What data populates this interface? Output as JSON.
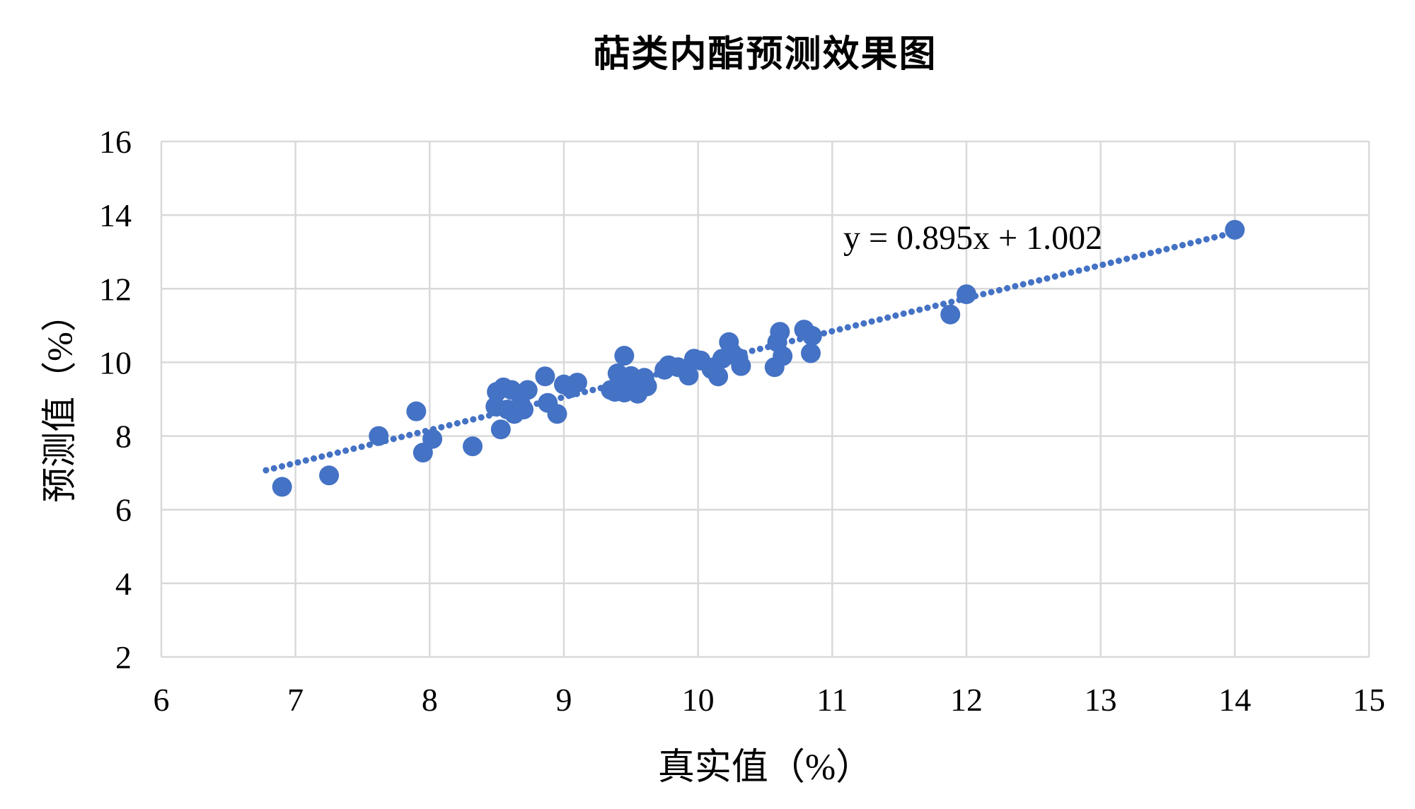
{
  "chart_data": {
    "type": "scatter",
    "title": "萜类内酯预测效果图",
    "xlabel": "真实值（%）",
    "ylabel": "预测值（%）",
    "xlim": [
      6,
      15
    ],
    "ylim": [
      2,
      16
    ],
    "x_ticks": [
      6,
      7,
      8,
      9,
      10,
      11,
      12,
      13,
      14,
      15
    ],
    "y_ticks": [
      2,
      4,
      6,
      8,
      10,
      12,
      14,
      16
    ],
    "grid": true,
    "legend": "none",
    "equation_label": "y = 0.895x + 1.002",
    "trendline": {
      "slope": 0.895,
      "intercept": 1.002,
      "x_start": 6.78,
      "x_end": 14.05,
      "style": "dotted"
    },
    "series": [
      {
        "name": "预测值",
        "points": [
          [
            6.9,
            6.62
          ],
          [
            7.25,
            6.93
          ],
          [
            7.62,
            8.0
          ],
          [
            7.9,
            8.67
          ],
          [
            7.95,
            7.55
          ],
          [
            8.02,
            7.92
          ],
          [
            8.32,
            7.72
          ],
          [
            8.5,
            9.2
          ],
          [
            8.55,
            9.32
          ],
          [
            8.61,
            9.25
          ],
          [
            8.49,
            8.8
          ],
          [
            8.58,
            8.72
          ],
          [
            8.68,
            8.85
          ],
          [
            8.73,
            9.25
          ],
          [
            8.7,
            8.72
          ],
          [
            8.53,
            8.18
          ],
          [
            8.63,
            8.6
          ],
          [
            8.86,
            9.62
          ],
          [
            8.88,
            8.9
          ],
          [
            8.95,
            8.6
          ],
          [
            9.0,
            9.4
          ],
          [
            9.05,
            9.3
          ],
          [
            9.1,
            9.45
          ],
          [
            9.35,
            9.25
          ],
          [
            9.38,
            9.2
          ],
          [
            9.4,
            9.7
          ],
          [
            9.45,
            10.18
          ],
          [
            9.45,
            9.18
          ],
          [
            9.5,
            9.63
          ],
          [
            9.48,
            9.3
          ],
          [
            9.55,
            9.15
          ],
          [
            9.57,
            9.45
          ],
          [
            9.6,
            9.58
          ],
          [
            9.62,
            9.35
          ],
          [
            9.75,
            9.8
          ],
          [
            9.78,
            9.92
          ],
          [
            9.85,
            9.87
          ],
          [
            9.93,
            9.64
          ],
          [
            9.97,
            10.1
          ],
          [
            10.02,
            10.05
          ],
          [
            10.1,
            9.82
          ],
          [
            10.18,
            10.1
          ],
          [
            10.23,
            10.55
          ],
          [
            10.25,
            10.27
          ],
          [
            10.3,
            10.12
          ],
          [
            10.32,
            9.9
          ],
          [
            10.15,
            9.62
          ],
          [
            10.57,
            9.87
          ],
          [
            10.59,
            10.55
          ],
          [
            10.61,
            10.83
          ],
          [
            10.63,
            10.17
          ],
          [
            10.79,
            10.89
          ],
          [
            10.85,
            10.72
          ],
          [
            10.84,
            10.25
          ],
          [
            11.88,
            11.3
          ],
          [
            12.0,
            11.85
          ],
          [
            14.0,
            13.6
          ]
        ]
      }
    ],
    "colors": {
      "marker": "#4472C4",
      "trendline": "#4472C4",
      "gridline": "#D9D9D9",
      "text": "#000000",
      "background": "#FFFFFF"
    }
  }
}
